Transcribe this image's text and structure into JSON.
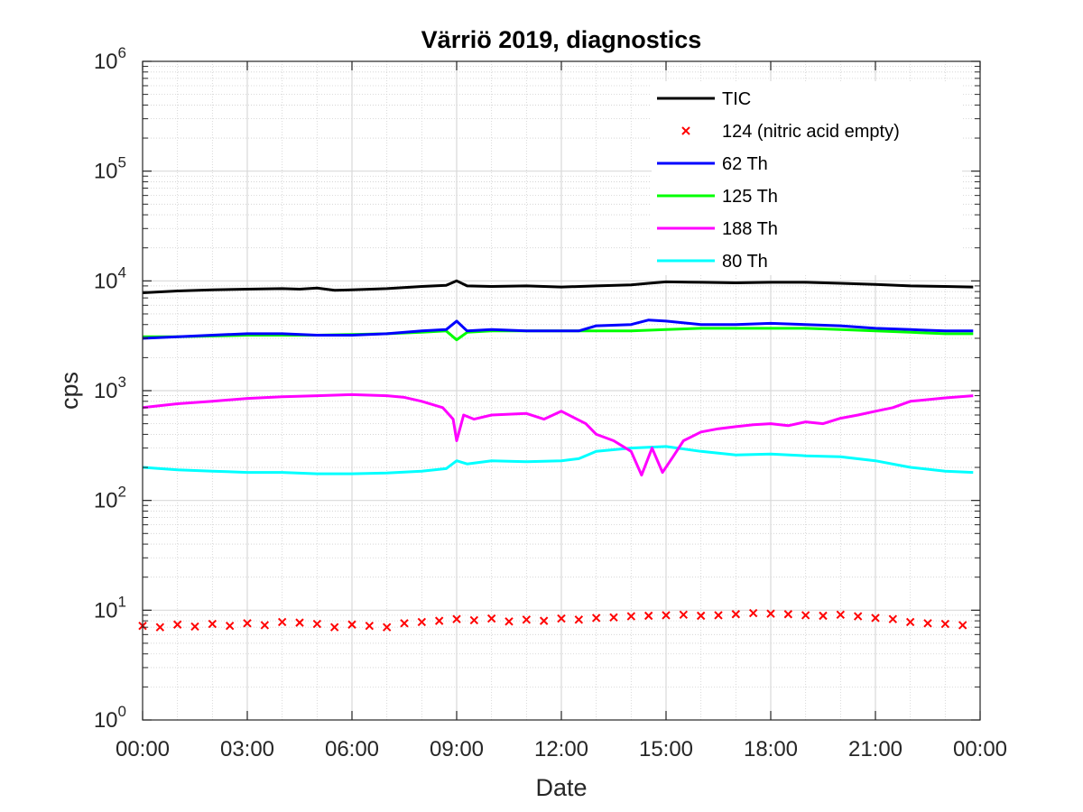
{
  "chart_data": {
    "type": "line",
    "title": "Värriö 2019, diagnostics",
    "xlabel": "Date",
    "ylabel": "cps",
    "y_scale": "log",
    "ylim": [
      1,
      1000000
    ],
    "xlim": [
      "00:00",
      "24:00"
    ],
    "x_unit": "hours",
    "x_ticks": [
      "00:00",
      "03:00",
      "06:00",
      "09:00",
      "12:00",
      "15:00",
      "18:00",
      "21:00",
      "00:00"
    ],
    "y_ticks": [
      {
        "base": "10",
        "exp": "0",
        "value": 1
      },
      {
        "base": "10",
        "exp": "1",
        "value": 10
      },
      {
        "base": "10",
        "exp": "2",
        "value": 100
      },
      {
        "base": "10",
        "exp": "3",
        "value": 1000
      },
      {
        "base": "10",
        "exp": "4",
        "value": 10000
      },
      {
        "base": "10",
        "exp": "5",
        "value": 100000
      },
      {
        "base": "10",
        "exp": "6",
        "value": 1000000
      }
    ],
    "grid": true,
    "minor_grid": true,
    "legend_position": "top-right",
    "series": [
      {
        "name": "TIC",
        "style": "line",
        "color": "#000000",
        "x": [
          0,
          1,
          2,
          3,
          4,
          4.5,
          5,
          5.5,
          6,
          7,
          8,
          8.7,
          9.0,
          9.3,
          10,
          11,
          12,
          13,
          14,
          14.5,
          15,
          16,
          17,
          18,
          19,
          20,
          21,
          22,
          23,
          23.8
        ],
        "y": [
          7800,
          8100,
          8300,
          8400,
          8500,
          8400,
          8600,
          8200,
          8300,
          8500,
          8900,
          9100,
          10000,
          9000,
          8900,
          9000,
          8800,
          9000,
          9200,
          9500,
          9800,
          9700,
          9600,
          9700,
          9700,
          9500,
          9300,
          9000,
          8900,
          8800
        ]
      },
      {
        "name": "124 (nitric acid empty)",
        "style": "marker",
        "color": "#ff0000",
        "x": [
          0,
          0.5,
          1,
          1.5,
          2,
          2.5,
          3,
          3.5,
          4,
          4.5,
          5,
          5.5,
          6,
          6.5,
          7,
          7.5,
          8,
          8.5,
          9,
          9.5,
          10,
          10.5,
          11,
          11.5,
          12,
          12.5,
          13,
          13.5,
          14,
          14.5,
          15,
          15.5,
          16,
          16.5,
          17,
          17.5,
          18,
          18.5,
          19,
          19.5,
          20,
          20.5,
          21,
          21.5,
          22,
          22.5,
          23,
          23.5
        ],
        "y": [
          7.2,
          7.0,
          7.4,
          7.1,
          7.5,
          7.2,
          7.6,
          7.3,
          7.8,
          7.7,
          7.5,
          7.0,
          7.4,
          7.2,
          7.0,
          7.6,
          7.8,
          8.0,
          8.3,
          8.1,
          8.4,
          7.9,
          8.2,
          8.0,
          8.4,
          8.2,
          8.5,
          8.6,
          8.8,
          8.9,
          9.0,
          9.1,
          8.9,
          9.0,
          9.2,
          9.4,
          9.3,
          9.2,
          9.0,
          8.9,
          9.1,
          8.8,
          8.5,
          8.3,
          7.8,
          7.6,
          7.5,
          7.3
        ]
      },
      {
        "name": "62 Th",
        "style": "line",
        "color": "#0000ff",
        "x": [
          0,
          1,
          2,
          3,
          4,
          5,
          6,
          7,
          8,
          8.7,
          9.0,
          9.3,
          10,
          11,
          12,
          12.5,
          13,
          14,
          14.5,
          15,
          16,
          17,
          18,
          19,
          20,
          21,
          22,
          23,
          23.8
        ],
        "y": [
          3000,
          3100,
          3200,
          3300,
          3300,
          3200,
          3200,
          3300,
          3500,
          3600,
          4300,
          3500,
          3600,
          3500,
          3500,
          3500,
          3900,
          4000,
          4400,
          4300,
          4000,
          4000,
          4100,
          4000,
          3900,
          3700,
          3600,
          3500,
          3500
        ]
      },
      {
        "name": "125 Th",
        "style": "line",
        "color": "#00ff00",
        "x": [
          0,
          1,
          2,
          3,
          4,
          5,
          6,
          7,
          8,
          8.7,
          9.0,
          9.3,
          10,
          11,
          12,
          13,
          14,
          15,
          16,
          17,
          18,
          19,
          20,
          21,
          22,
          23,
          23.8
        ],
        "y": [
          3100,
          3100,
          3150,
          3200,
          3200,
          3200,
          3250,
          3300,
          3400,
          3500,
          2900,
          3400,
          3500,
          3500,
          3500,
          3500,
          3500,
          3600,
          3700,
          3700,
          3700,
          3700,
          3600,
          3500,
          3400,
          3300,
          3300
        ]
      },
      {
        "name": "188 Th",
        "style": "line",
        "color": "#ff00ff",
        "x": [
          0,
          1,
          2,
          3,
          4,
          5,
          6,
          7,
          7.5,
          8,
          8.6,
          8.9,
          9.0,
          9.2,
          9.5,
          10,
          11,
          11.5,
          12,
          12.7,
          13,
          13.5,
          14,
          14.3,
          14.6,
          14.9,
          15.2,
          15.5,
          16,
          16.5,
          17,
          17.5,
          18,
          18.5,
          19,
          19.5,
          20,
          20.5,
          21,
          21.5,
          22,
          23,
          23.8
        ],
        "y": [
          700,
          760,
          800,
          850,
          880,
          900,
          920,
          900,
          870,
          800,
          700,
          550,
          350,
          600,
          550,
          600,
          620,
          550,
          650,
          500,
          400,
          350,
          280,
          170,
          300,
          180,
          250,
          350,
          420,
          450,
          470,
          490,
          500,
          480,
          520,
          500,
          560,
          600,
          650,
          700,
          800,
          860,
          900
        ]
      },
      {
        "name": "80 Th",
        "style": "line",
        "color": "#00ffff",
        "x": [
          0,
          1,
          2,
          3,
          4,
          5,
          6,
          7,
          8,
          8.7,
          9.0,
          9.3,
          10,
          11,
          12,
          12.5,
          13,
          14,
          15,
          16,
          17,
          18,
          19,
          20,
          21,
          22,
          23,
          23.8
        ],
        "y": [
          200,
          190,
          185,
          180,
          180,
          175,
          175,
          178,
          185,
          195,
          230,
          215,
          230,
          225,
          230,
          240,
          280,
          300,
          310,
          280,
          260,
          265,
          255,
          250,
          230,
          200,
          185,
          180
        ]
      }
    ]
  }
}
